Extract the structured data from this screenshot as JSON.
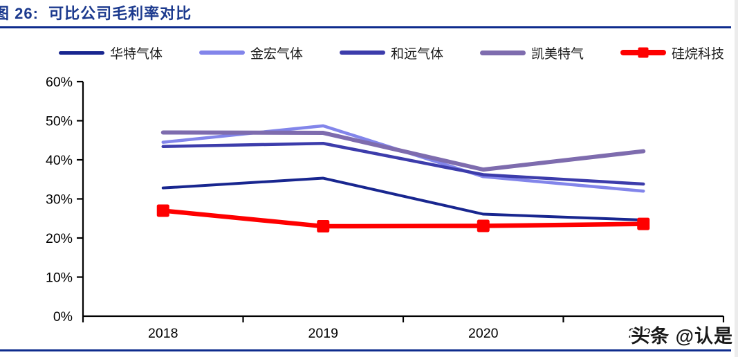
{
  "page": {
    "title": "图 26:  可比公司毛利率对比",
    "watermark": "头条 @认是",
    "colors": {
      "title": "#1c3a8e",
      "rule": "#0e2c8d",
      "axis": "#000000",
      "edge_strip": "#ececec"
    }
  },
  "chart_data": {
    "type": "line",
    "title": "可比公司毛利率对比",
    "categories": [
      "2018",
      "2019",
      "2020",
      "2021"
    ],
    "y_ticks": [
      "0%",
      "10%",
      "20%",
      "30%",
      "40%",
      "50%",
      "60%"
    ],
    "ylim": [
      0,
      60
    ],
    "y_tick_step": 10,
    "grid": false,
    "legend_position": "top",
    "series": [
      {
        "name": "华特气体",
        "color": "#18268f",
        "width": 4,
        "marker": "none",
        "values": [
          32.8,
          35.3,
          26.1,
          24.6
        ]
      },
      {
        "name": "金宏气体",
        "color": "#8285ea",
        "width": 4.5,
        "marker": "none",
        "values": [
          44.5,
          48.7,
          35.7,
          32.0
        ]
      },
      {
        "name": "和远气体",
        "color": "#3c3cab",
        "width": 4.5,
        "marker": "none",
        "values": [
          43.4,
          44.2,
          36.2,
          33.8
        ]
      },
      {
        "name": "凯美特气",
        "color": "#7e6cae",
        "width": 6,
        "marker": "none",
        "values": [
          47.0,
          46.9,
          37.5,
          42.2
        ]
      },
      {
        "name": "硅烷科技",
        "color": "#fe0000",
        "width": 6.5,
        "marker": "square",
        "values": [
          27.0,
          23.0,
          23.1,
          23.6
        ]
      }
    ]
  }
}
